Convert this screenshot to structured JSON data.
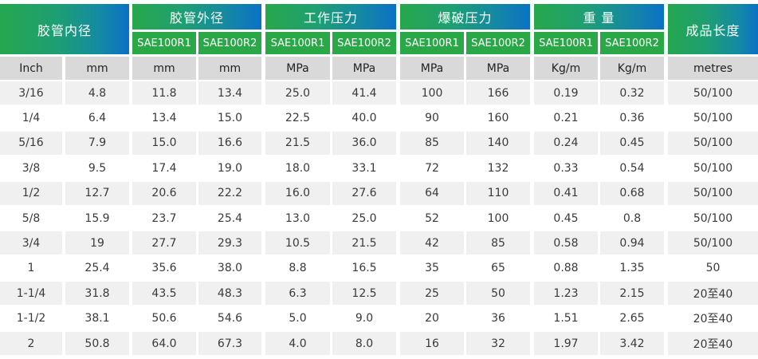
{
  "header": {
    "inner_diameter": "胶管内径",
    "outer_diameter": "胶管外径",
    "working_pressure": "工作压力",
    "burst_pressure": "爆破压力",
    "weight": "重 量",
    "length": "成品长度",
    "sub_labels": [
      "SAE100R1",
      "SAE100R2",
      "SAE100R1",
      "SAE100R2",
      "SAE100R1",
      "SAE100R2",
      "SAE100R1",
      "SAE100R2"
    ]
  },
  "units": [
    "Inch",
    "mm",
    "mm",
    "mm",
    "MPa",
    "MPa",
    "MPa",
    "MPa",
    "Kg/m",
    "Kg/m",
    "metres"
  ],
  "rows": [
    [
      "3/16",
      "4.8",
      "11.8",
      "13.4",
      "25.0",
      "41.4",
      "100",
      "166",
      "0.19",
      "0.32",
      "50/100"
    ],
    [
      "1/4",
      "6.4",
      "13.4",
      "15.0",
      "22.5",
      "40.0",
      "90",
      "160",
      "0.21",
      "0.36",
      "50/100"
    ],
    [
      "5/16",
      "7.9",
      "15.0",
      "16.6",
      "21.5",
      "36.0",
      "85",
      "140",
      "0.24",
      "0.45",
      "50/100"
    ],
    [
      "3/8",
      "9.5",
      "17.4",
      "19.0",
      "18.0",
      "33.1",
      "72",
      "132",
      "0.33",
      "0.54",
      "50/100"
    ],
    [
      "1/2",
      "12.7",
      "20.6",
      "22.2",
      "16.0",
      "27.6",
      "64",
      "110",
      "0.41",
      "0.68",
      "50/100"
    ],
    [
      "5/8",
      "15.9",
      "23.7",
      "25.4",
      "13.0",
      "25.0",
      "52",
      "100",
      "0.45",
      "0.8",
      "50/100"
    ],
    [
      "3/4",
      "19",
      "27.7",
      "29.3",
      "10.5",
      "21.5",
      "42",
      "85",
      "0.58",
      "0.94",
      "50/100"
    ],
    [
      "1",
      "25.4",
      "35.6",
      "38.0",
      "8.8",
      "16.5",
      "35",
      "65",
      "0.88",
      "1.35",
      "50"
    ],
    [
      "1-1/4",
      "31.8",
      "43.5",
      "48.3",
      "6.3",
      "12.5",
      "25",
      "50",
      "1.23",
      "2.15",
      "20至40"
    ],
    [
      "1-1/2",
      "38.1",
      "50.6",
      "54.6",
      "5.0",
      "9.0",
      "20",
      "36",
      "1.51",
      "2.65",
      "20至40"
    ],
    [
      "2",
      "50.8",
      "64.0",
      "67.3",
      "4.0",
      "8.0",
      "16",
      "32",
      "1.97",
      "3.42",
      "20至40"
    ]
  ]
}
